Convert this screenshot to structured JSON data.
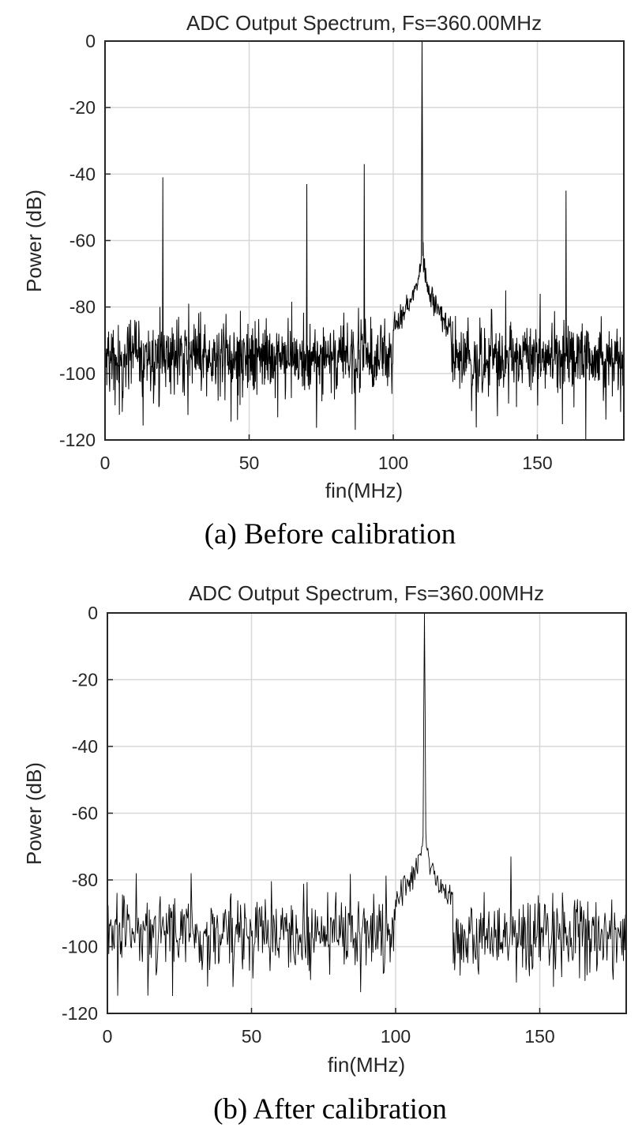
{
  "chart_data": [
    {
      "type": "line",
      "title": "ADC Output Spectrum, Fs=360.00MHz",
      "xlabel": "fin(MHz)",
      "ylabel": "Power (dB)",
      "xlim": [
        0,
        180
      ],
      "ylim": [
        -120,
        0
      ],
      "xticks": [
        0,
        50,
        100,
        150
      ],
      "yticks": [
        0,
        -20,
        -40,
        -60,
        -80,
        -100,
        -120
      ],
      "grid": true,
      "caption": "(a) Before calibration",
      "line_color": "#000000",
      "noise_floor_db": -95,
      "fundamental": {
        "x": 110,
        "y": 0
      },
      "spurs": [
        {
          "x": 20,
          "y": -41
        },
        {
          "x": 70,
          "y": -43
        },
        {
          "x": 90,
          "y": -37
        },
        {
          "x": 160,
          "y": -45
        }
      ],
      "minor_spurs": [
        {
          "x": 19,
          "y": -80
        },
        {
          "x": 29,
          "y": -79
        },
        {
          "x": 139,
          "y": -75
        },
        {
          "x": 151,
          "y": -76
        }
      ]
    },
    {
      "type": "line",
      "title": "ADC Output Spectrum, Fs=360.00MHz",
      "xlabel": "fin(MHz)",
      "ylabel": "Power (dB)",
      "xlim": [
        0,
        180
      ],
      "ylim": [
        -120,
        0
      ],
      "xticks": [
        0,
        50,
        100,
        150
      ],
      "yticks": [
        0,
        -20,
        -40,
        -60,
        -80,
        -100,
        -120
      ],
      "grid": true,
      "caption": "(b) After calibration",
      "line_color": "#000000",
      "noise_floor_db": -96,
      "fundamental": {
        "x": 110,
        "y": 0
      },
      "spurs": [],
      "minor_spurs": [
        {
          "x": 10,
          "y": -78
        },
        {
          "x": 29,
          "y": -78
        },
        {
          "x": 140,
          "y": -73
        }
      ]
    }
  ]
}
